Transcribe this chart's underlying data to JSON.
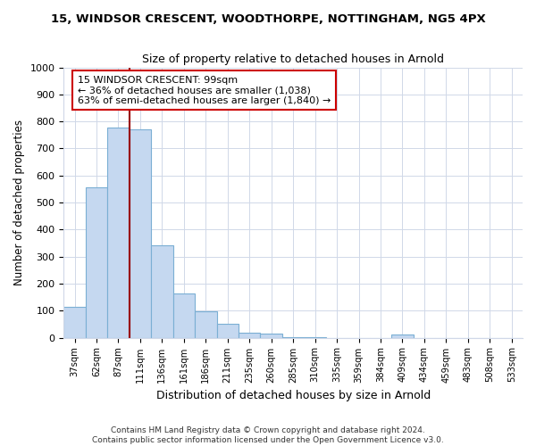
{
  "title": "15, WINDSOR CRESCENT, WOODTHORPE, NOTTINGHAM, NG5 4PX",
  "subtitle": "Size of property relative to detached houses in Arnold",
  "xlabel": "Distribution of detached houses by size in Arnold",
  "ylabel": "Number of detached properties",
  "categories": [
    "37sqm",
    "62sqm",
    "87sqm",
    "111sqm",
    "136sqm",
    "161sqm",
    "186sqm",
    "211sqm",
    "235sqm",
    "260sqm",
    "285sqm",
    "310sqm",
    "335sqm",
    "359sqm",
    "384sqm",
    "409sqm",
    "434sqm",
    "459sqm",
    "483sqm",
    "508sqm",
    "533sqm"
  ],
  "values": [
    113,
    557,
    778,
    770,
    343,
    163,
    98,
    50,
    20,
    15,
    3,
    3,
    0,
    0,
    0,
    12,
    0,
    0,
    0,
    0,
    0
  ],
  "bar_color": "#c5d8f0",
  "bar_edge_color": "#7bafd4",
  "grid_color": "#d0d8e8",
  "bg_color": "#ffffff",
  "vline_color": "#990000",
  "annotation_text": "15 WINDSOR CRESCENT: 99sqm\n← 36% of detached houses are smaller (1,038)\n63% of semi-detached houses are larger (1,840) →",
  "annotation_box_color": "#ffffff",
  "annotation_box_edge": "#cc0000",
  "ylim": [
    0,
    1000
  ],
  "yticks": [
    0,
    100,
    200,
    300,
    400,
    500,
    600,
    700,
    800,
    900,
    1000
  ],
  "footer_line1": "Contains HM Land Registry data © Crown copyright and database right 2024.",
  "footer_line2": "Contains public sector information licensed under the Open Government Licence v3.0."
}
